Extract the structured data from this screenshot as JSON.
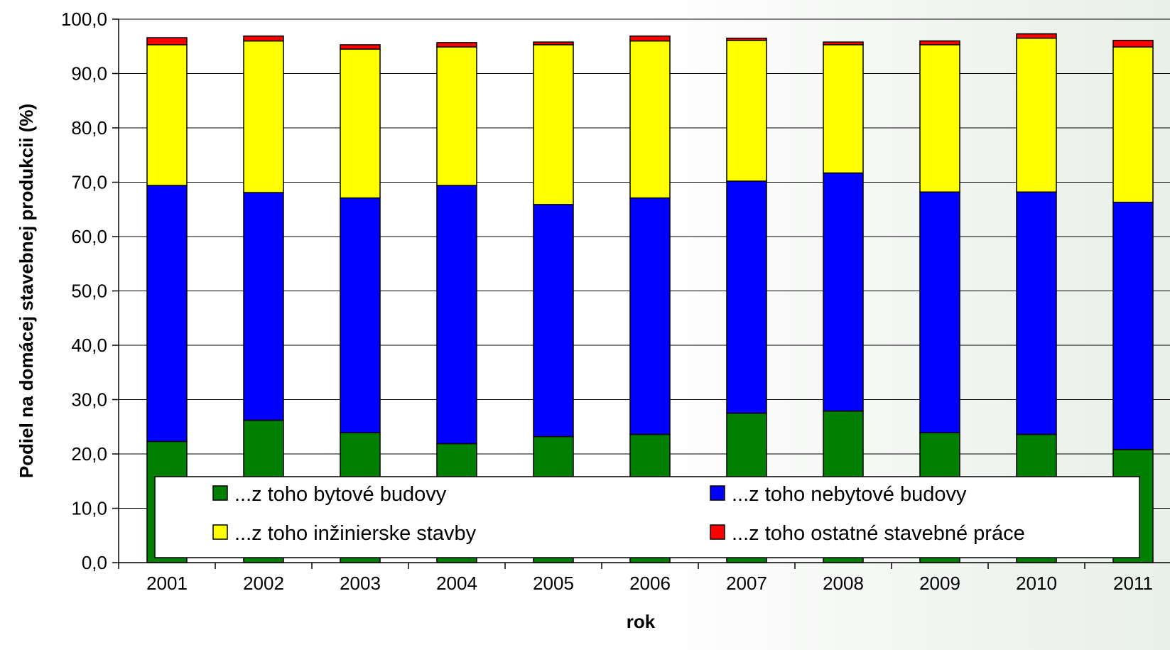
{
  "chart_data": {
    "type": "bar",
    "stacked": true,
    "xlabel": "rok",
    "ylabel": "Podiel na domácej stavebnej produkcii (%)",
    "ylim": [
      0,
      100
    ],
    "yticks": [
      "0,0",
      "10,0",
      "20,0",
      "30,0",
      "40,0",
      "50,0",
      "60,0",
      "70,0",
      "80,0",
      "90,0",
      "100,0"
    ],
    "grid": true,
    "legend_position": "bottom, inside plot area",
    "categories": [
      "2001",
      "2002",
      "2003",
      "2004",
      "2005",
      "2006",
      "2007",
      "2008",
      "2009",
      "2010",
      "2011"
    ],
    "series": [
      {
        "name": "...z toho bytové budovy",
        "color": "#008000",
        "values": [
          22.3,
          26.2,
          23.9,
          21.9,
          23.2,
          23.6,
          27.5,
          27.9,
          23.9,
          23.6,
          20.8
        ]
      },
      {
        "name": "...z toho nebytové budovy",
        "color": "#0000ff",
        "values": [
          47.1,
          41.9,
          43.2,
          47.5,
          42.7,
          43.5,
          42.7,
          43.8,
          44.3,
          44.6,
          45.5
        ]
      },
      {
        "name": "...z toho inžinierske stavby",
        "color": "#ffff00",
        "values": [
          25.9,
          27.9,
          27.4,
          25.5,
          29.4,
          28.9,
          25.9,
          23.6,
          27.1,
          28.3,
          28.6
        ]
      },
      {
        "name": "...z toho ostatné stavebné práce",
        "color": "#ff0000",
        "values": [
          1.3,
          0.9,
          0.8,
          0.8,
          0.5,
          0.9,
          0.4,
          0.5,
          0.7,
          0.8,
          1.2
        ]
      }
    ]
  }
}
